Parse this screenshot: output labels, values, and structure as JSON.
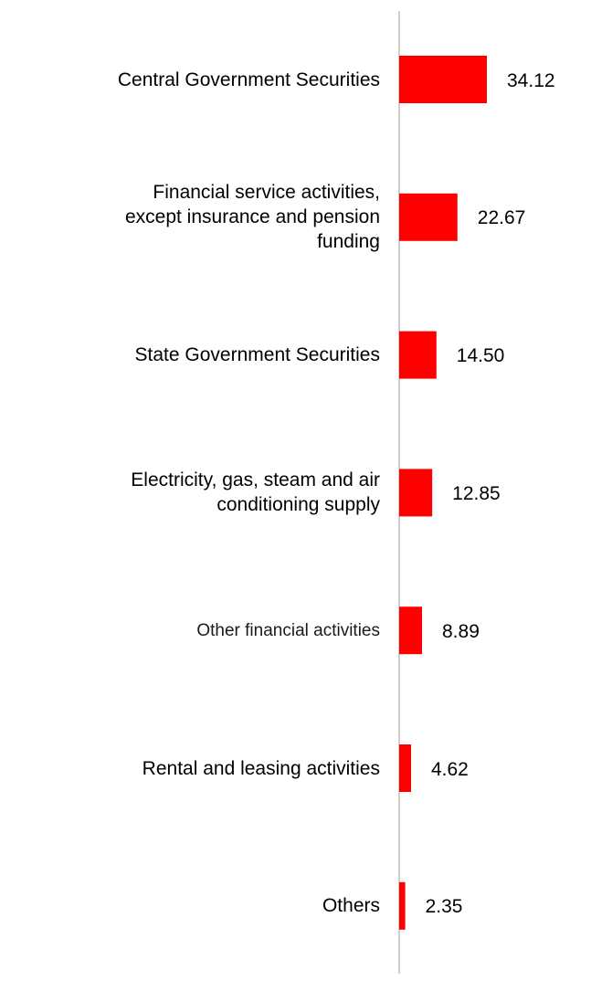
{
  "chart_data": {
    "type": "bar",
    "orientation": "horizontal",
    "categories": [
      "Central Government Securities",
      "Financial service activities, except insurance and pension funding",
      "State Government Securities",
      "Electricity, gas, steam and air conditioning supply",
      "Other financial activities",
      "Rental and leasing activities",
      "Others"
    ],
    "category_lines": [
      [
        "Central Government Securities"
      ],
      [
        "Financial service activities,",
        "except insurance and pension",
        "funding"
      ],
      [
        "State Government Securities"
      ],
      [
        "Electricity, gas, steam and air",
        "conditioning supply"
      ],
      [
        "Other financial activities"
      ],
      [
        "Rental and leasing activities"
      ],
      [
        "Others"
      ]
    ],
    "values": [
      34.12,
      22.67,
      14.5,
      12.85,
      8.89,
      4.62,
      2.35
    ],
    "value_labels": [
      "34.12",
      "22.67",
      "14.50",
      "12.85",
      "8.89",
      "4.62",
      "2.35"
    ],
    "title": "",
    "xlabel": "",
    "ylabel": "",
    "xlim": [
      0,
      34.12
    ],
    "grid": false,
    "legend": "none",
    "bar_color": "#ff0000",
    "axis_color": "#d0d0d0"
  }
}
